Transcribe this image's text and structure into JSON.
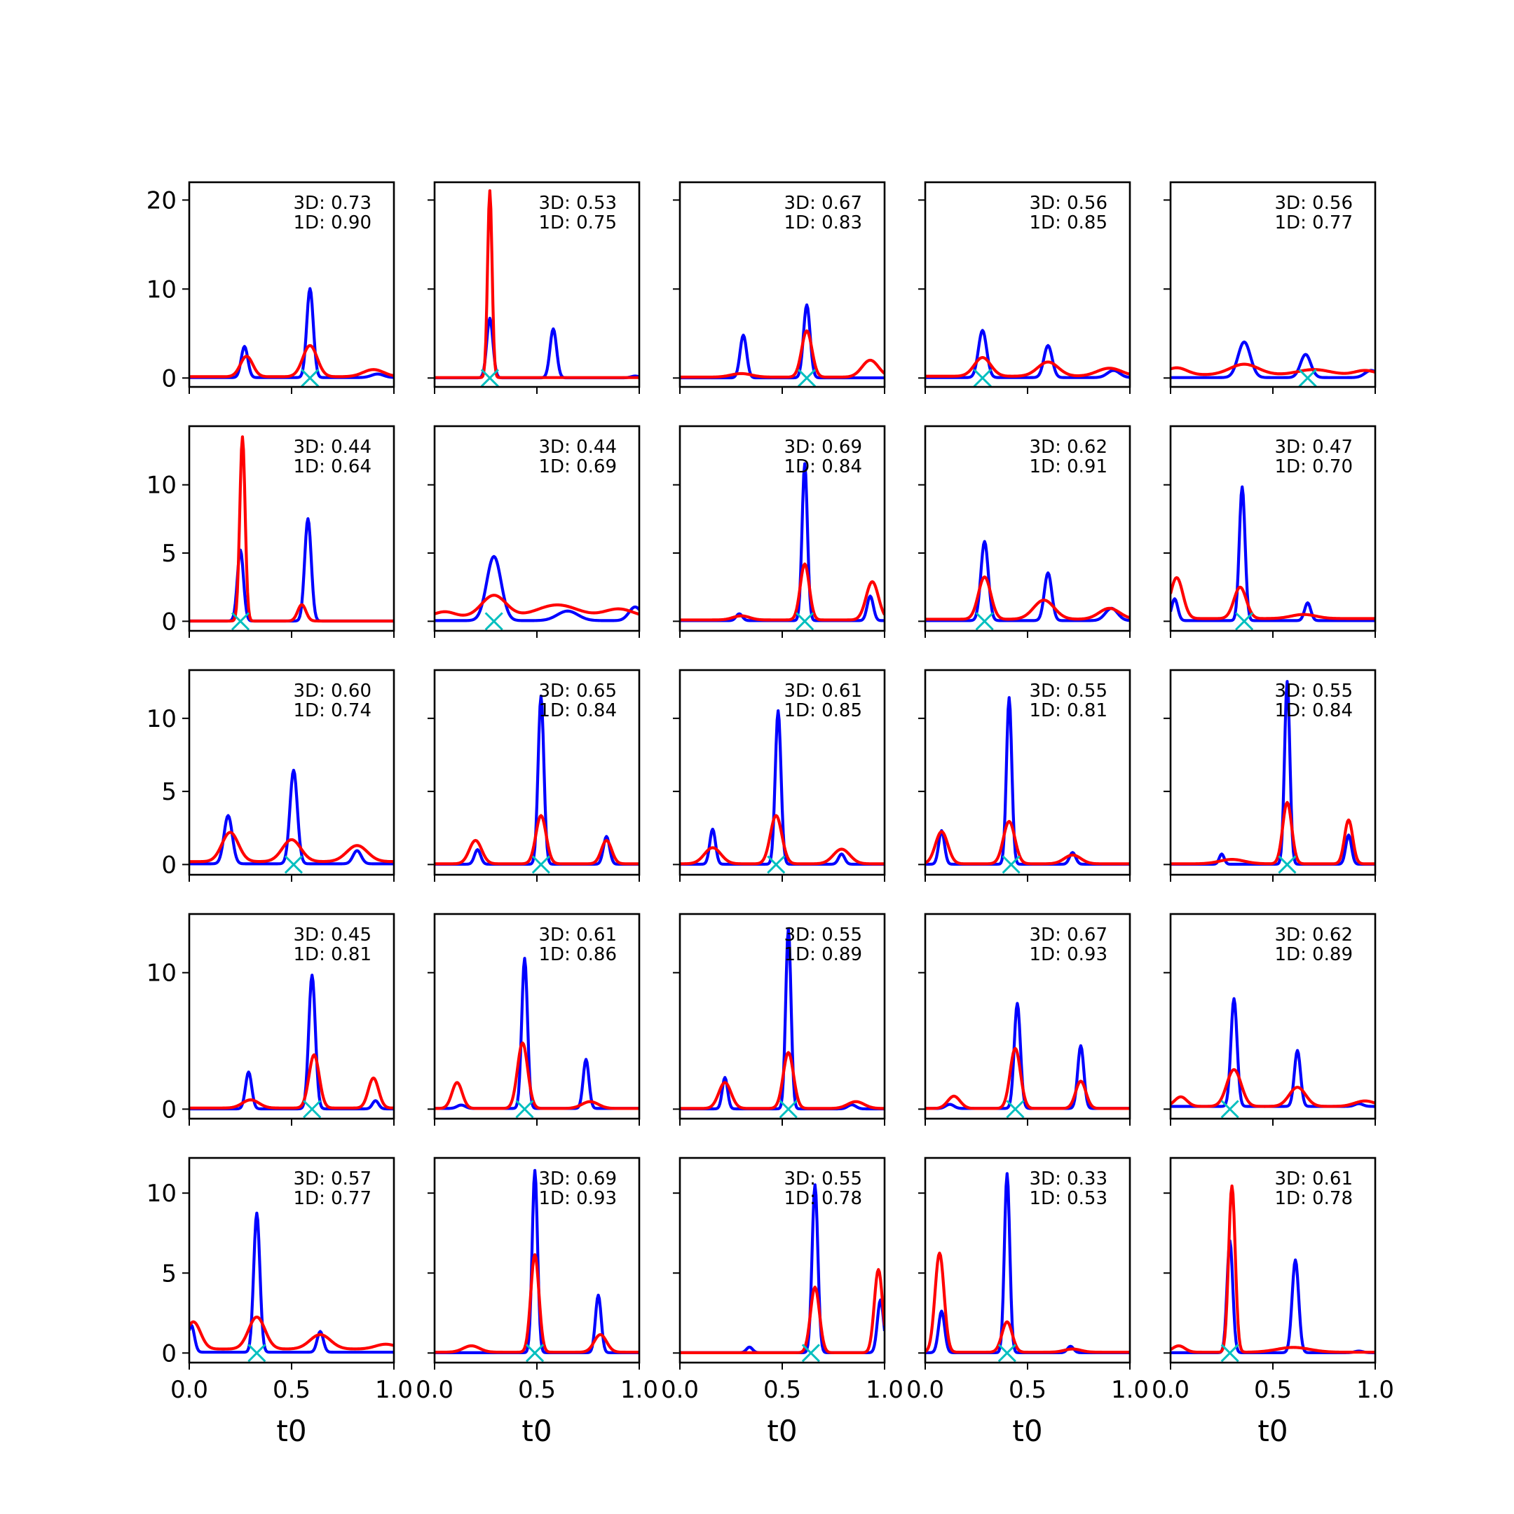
{
  "chart_data": {
    "type": "line",
    "layout": {
      "rows": 5,
      "cols": 5
    },
    "xlabel": "t0",
    "xlim": [
      0.0,
      1.0
    ],
    "xticks": [
      "0.0",
      "0.5",
      "1.0"
    ],
    "series_styles": [
      {
        "role": "3D",
        "color": "#0000ff"
      },
      {
        "role": "1D",
        "color": "#ff0000"
      },
      {
        "role": "marker",
        "color": "#00bfbf",
        "marker": "x"
      }
    ],
    "rows": [
      {
        "ylim": [
          -1,
          22
        ],
        "yticks": [
          0,
          10,
          20
        ]
      },
      {
        "ylim": [
          -0.7,
          14.3
        ],
        "yticks": [
          0,
          5,
          10
        ]
      },
      {
        "ylim": [
          -0.7,
          13.3
        ],
        "yticks": [
          0,
          5,
          10
        ]
      },
      {
        "ylim": [
          -0.7,
          14.3
        ],
        "yticks": [
          0,
          10
        ]
      },
      {
        "ylim": [
          -0.6,
          12.2
        ],
        "yticks": [
          0,
          5,
          10
        ]
      }
    ],
    "panels": [
      {
        "ann": [
          "3D: 0.73",
          "1D: 0.90"
        ],
        "marker": 0.59,
        "blue": [
          [
            0.27,
            3.5,
            0.016
          ],
          [
            0.59,
            10,
            0.016
          ],
          [
            0.92,
            0.4,
            0.03
          ]
        ],
        "red": [
          [
            0.28,
            2.3,
            0.03
          ],
          [
            0.59,
            3.5,
            0.035
          ],
          [
            0.9,
            0.8,
            0.05
          ]
        ],
        "blue_base": 0.05,
        "red_base": 0.15
      },
      {
        "ann": [
          "3D: 0.53",
          "1D: 0.75"
        ],
        "marker": 0.27,
        "blue": [
          [
            0.27,
            6.7,
            0.015
          ],
          [
            0.58,
            5.5,
            0.016
          ],
          [
            0.98,
            0.2,
            0.02
          ]
        ],
        "red": [
          [
            0.27,
            21,
            0.011
          ]
        ],
        "blue_base": 0.02,
        "red_base": 0.05
      },
      {
        "ann": [
          "3D: 0.67",
          "1D: 0.83"
        ],
        "marker": 0.62,
        "blue": [
          [
            0.31,
            4.8,
            0.016
          ],
          [
            0.62,
            8.2,
            0.016
          ]
        ],
        "red": [
          [
            0.3,
            0.4,
            0.05
          ],
          [
            0.62,
            5.2,
            0.025
          ],
          [
            0.93,
            1.9,
            0.04
          ]
        ],
        "blue_base": 0.02,
        "red_base": 0.1
      },
      {
        "ann": [
          "3D: 0.56",
          "1D: 0.85"
        ],
        "marker": 0.28,
        "blue": [
          [
            0.28,
            5.3,
            0.02
          ],
          [
            0.6,
            3.6,
            0.02
          ],
          [
            0.92,
            0.8,
            0.03
          ]
        ],
        "red": [
          [
            0.28,
            2.1,
            0.04
          ],
          [
            0.6,
            1.6,
            0.05
          ],
          [
            0.9,
            0.9,
            0.06
          ]
        ],
        "blue_base": 0.05,
        "red_base": 0.2
      },
      {
        "ann": [
          "3D: 0.56",
          "1D: 0.77"
        ],
        "marker": 0.67,
        "blue": [
          [
            0.36,
            4.0,
            0.03
          ],
          [
            0.66,
            2.6,
            0.025
          ],
          [
            0.98,
            0.8,
            0.03
          ]
        ],
        "red": [
          [
            0.03,
            0.8,
            0.05
          ],
          [
            0.36,
            1.2,
            0.07
          ],
          [
            0.7,
            0.6,
            0.08
          ],
          [
            0.95,
            0.5,
            0.05
          ]
        ],
        "blue_base": 0.05,
        "red_base": 0.35
      },
      {
        "ann": [
          "3D: 0.44",
          "1D: 0.64"
        ],
        "marker": 0.25,
        "blue": [
          [
            0.25,
            5.2,
            0.015
          ],
          [
            0.58,
            7.5,
            0.016
          ]
        ],
        "red": [
          [
            0.26,
            13.5,
            0.013
          ],
          [
            0.55,
            1.2,
            0.02
          ]
        ],
        "blue_base": 0.02,
        "red_base": 0.02
      },
      {
        "ann": [
          "3D: 0.44",
          "1D: 0.69"
        ],
        "marker": 0.29,
        "blue": [
          [
            0.29,
            4.7,
            0.035
          ],
          [
            0.65,
            0.7,
            0.05
          ],
          [
            0.98,
            1.0,
            0.03
          ]
        ],
        "red": [
          [
            0.05,
            0.4,
            0.05
          ],
          [
            0.29,
            1.6,
            0.06
          ],
          [
            0.6,
            0.9,
            0.1
          ],
          [
            0.9,
            0.6,
            0.07
          ]
        ],
        "blue_base": 0.05,
        "red_base": 0.3
      },
      {
        "ann": [
          "3D: 0.69",
          "1D: 0.84"
        ],
        "marker": 0.61,
        "blue": [
          [
            0.29,
            0.5,
            0.015
          ],
          [
            0.61,
            11.5,
            0.013
          ],
          [
            0.93,
            1.8,
            0.015
          ]
        ],
        "red": [
          [
            0.3,
            0.3,
            0.04
          ],
          [
            0.61,
            4.1,
            0.022
          ],
          [
            0.94,
            2.8,
            0.03
          ]
        ],
        "blue_base": 0.05,
        "red_base": 0.1
      },
      {
        "ann": [
          "3D: 0.62",
          "1D: 0.91"
        ],
        "marker": 0.29,
        "blue": [
          [
            0.29,
            5.8,
            0.018
          ],
          [
            0.6,
            3.5,
            0.018
          ],
          [
            0.91,
            0.9,
            0.03
          ]
        ],
        "red": [
          [
            0.29,
            3.1,
            0.03
          ],
          [
            0.58,
            1.4,
            0.05
          ],
          [
            0.9,
            0.8,
            0.05
          ]
        ],
        "blue_base": 0.05,
        "red_base": 0.15
      },
      {
        "ann": [
          "3D: 0.47",
          "1D: 0.70"
        ],
        "marker": 0.36,
        "blue": [
          [
            0.02,
            1.6,
            0.015
          ],
          [
            0.35,
            9.8,
            0.014
          ],
          [
            0.67,
            1.3,
            0.015
          ]
        ],
        "red": [
          [
            0.03,
            3.0,
            0.03
          ],
          [
            0.34,
            2.3,
            0.03
          ],
          [
            0.65,
            0.3,
            0.06
          ]
        ],
        "blue_base": 0.05,
        "red_base": 0.2
      },
      {
        "ann": [
          "3D: 0.60",
          "1D: 0.74"
        ],
        "marker": 0.51,
        "blue": [
          [
            0.19,
            3.3,
            0.02
          ],
          [
            0.51,
            6.4,
            0.018
          ],
          [
            0.82,
            0.9,
            0.02
          ]
        ],
        "red": [
          [
            0.2,
            2.0,
            0.04
          ],
          [
            0.5,
            1.5,
            0.045
          ],
          [
            0.82,
            1.1,
            0.05
          ]
        ],
        "blue_base": 0.05,
        "red_base": 0.2
      },
      {
        "ann": [
          "3D: 0.65",
          "1D: 0.84"
        ],
        "marker": 0.52,
        "blue": [
          [
            0.21,
            1.0,
            0.015
          ],
          [
            0.52,
            11.5,
            0.014
          ],
          [
            0.84,
            1.9,
            0.015
          ]
        ],
        "red": [
          [
            0.2,
            1.6,
            0.03
          ],
          [
            0.52,
            3.3,
            0.025
          ],
          [
            0.84,
            1.6,
            0.025
          ]
        ],
        "blue_base": 0.02,
        "red_base": 0.05
      },
      {
        "ann": [
          "3D: 0.61",
          "1D: 0.85"
        ],
        "marker": 0.47,
        "blue": [
          [
            0.16,
            2.4,
            0.014
          ],
          [
            0.48,
            10.5,
            0.014
          ],
          [
            0.79,
            0.7,
            0.015
          ]
        ],
        "red": [
          [
            0.16,
            1.1,
            0.04
          ],
          [
            0.47,
            3.3,
            0.028
          ],
          [
            0.79,
            1.0,
            0.04
          ]
        ],
        "blue_base": 0.02,
        "red_base": 0.05
      },
      {
        "ann": [
          "3D: 0.55",
          "1D: 0.81"
        ],
        "marker": 0.42,
        "blue": [
          [
            0.08,
            2.3,
            0.014
          ],
          [
            0.41,
            11.4,
            0.013
          ],
          [
            0.72,
            0.8,
            0.015
          ]
        ],
        "red": [
          [
            0.08,
            2.2,
            0.03
          ],
          [
            0.41,
            2.9,
            0.028
          ],
          [
            0.72,
            0.6,
            0.04
          ]
        ],
        "blue_base": 0.02,
        "red_base": 0.05
      },
      {
        "ann": [
          "3D: 0.55",
          "1D: 0.84"
        ],
        "marker": 0.57,
        "blue": [
          [
            0.25,
            0.7,
            0.012
          ],
          [
            0.57,
            12.5,
            0.013
          ],
          [
            0.87,
            2.0,
            0.014
          ]
        ],
        "red": [
          [
            0.3,
            0.3,
            0.06
          ],
          [
            0.57,
            4.2,
            0.022
          ],
          [
            0.87,
            3.0,
            0.02
          ]
        ],
        "blue_base": 0.02,
        "red_base": 0.05
      },
      {
        "ann": [
          "3D: 0.45",
          "1D: 0.81"
        ],
        "marker": 0.6,
        "blue": [
          [
            0.29,
            2.7,
            0.015
          ],
          [
            0.6,
            9.8,
            0.016
          ],
          [
            0.91,
            0.6,
            0.015
          ]
        ],
        "red": [
          [
            0.3,
            0.6,
            0.04
          ],
          [
            0.61,
            3.9,
            0.025
          ],
          [
            0.9,
            2.2,
            0.025
          ]
        ],
        "blue_base": 0.02,
        "red_base": 0.08
      },
      {
        "ann": [
          "3D: 0.61",
          "1D: 0.86"
        ],
        "marker": 0.44,
        "blue": [
          [
            0.13,
            0.25,
            0.02
          ],
          [
            0.44,
            11.0,
            0.014
          ],
          [
            0.74,
            3.6,
            0.014
          ]
        ],
        "red": [
          [
            0.11,
            1.9,
            0.025
          ],
          [
            0.43,
            4.8,
            0.025
          ],
          [
            0.76,
            0.5,
            0.04
          ]
        ],
        "blue_base": 0.05,
        "red_base": 0.05
      },
      {
        "ann": [
          "3D: 0.55",
          "1D: 0.89"
        ],
        "marker": 0.53,
        "blue": [
          [
            0.22,
            2.3,
            0.013
          ],
          [
            0.53,
            13.2,
            0.013
          ],
          [
            0.84,
            0.3,
            0.02
          ]
        ],
        "red": [
          [
            0.22,
            1.9,
            0.03
          ],
          [
            0.53,
            4.1,
            0.025
          ],
          [
            0.86,
            0.5,
            0.04
          ]
        ],
        "blue_base": 0.02,
        "red_base": 0.05
      },
      {
        "ann": [
          "3D: 0.67",
          "1D: 0.93"
        ],
        "marker": 0.44,
        "blue": [
          [
            0.12,
            0.3,
            0.02
          ],
          [
            0.45,
            7.7,
            0.015
          ],
          [
            0.76,
            4.6,
            0.015
          ]
        ],
        "red": [
          [
            0.14,
            0.9,
            0.03
          ],
          [
            0.44,
            4.4,
            0.025
          ],
          [
            0.76,
            2.0,
            0.025
          ]
        ],
        "blue_base": 0.05,
        "red_base": 0.05
      },
      {
        "ann": [
          "3D: 0.62",
          "1D: 0.89"
        ],
        "marker": 0.29,
        "blue": [
          [
            0.31,
            7.9,
            0.015
          ],
          [
            0.62,
            4.1,
            0.015
          ],
          [
            0.92,
            0.2,
            0.02
          ]
        ],
        "red": [
          [
            0.05,
            0.7,
            0.03
          ],
          [
            0.31,
            2.7,
            0.035
          ],
          [
            0.62,
            1.4,
            0.04
          ],
          [
            0.95,
            0.4,
            0.05
          ]
        ],
        "blue_base": 0.2,
        "red_base": 0.2
      },
      {
        "ann": [
          "3D: 0.57",
          "1D: 0.77"
        ],
        "marker": 0.33,
        "blue": [
          [
            0.01,
            1.7,
            0.015
          ],
          [
            0.33,
            8.7,
            0.015
          ],
          [
            0.64,
            1.3,
            0.015
          ]
        ],
        "red": [
          [
            0.02,
            1.7,
            0.035
          ],
          [
            0.33,
            2.0,
            0.04
          ],
          [
            0.64,
            0.9,
            0.05
          ],
          [
            0.96,
            0.3,
            0.05
          ]
        ],
        "blue_base": 0.05,
        "red_base": 0.25
      },
      {
        "ann": [
          "3D: 0.69",
          "1D: 0.93"
        ],
        "marker": 0.49,
        "blue": [
          [
            0.49,
            11.4,
            0.013
          ],
          [
            0.8,
            3.6,
            0.014
          ]
        ],
        "red": [
          [
            0.18,
            0.4,
            0.04
          ],
          [
            0.49,
            6.1,
            0.02
          ],
          [
            0.81,
            1.1,
            0.03
          ]
        ],
        "blue_base": 0.02,
        "red_base": 0.05
      },
      {
        "ann": [
          "3D: 0.55",
          "1D: 0.78"
        ],
        "marker": 0.64,
        "blue": [
          [
            0.34,
            0.35,
            0.015
          ],
          [
            0.66,
            10.5,
            0.014
          ],
          [
            0.98,
            3.3,
            0.015
          ]
        ],
        "red": [
          [
            0.66,
            4.1,
            0.022
          ],
          [
            0.97,
            5.2,
            0.02
          ]
        ],
        "blue_base": 0.02,
        "red_base": 0.02
      },
      {
        "ann": [
          "3D: 0.33",
          "1D: 0.53"
        ],
        "marker": 0.4,
        "blue": [
          [
            0.08,
            2.6,
            0.015
          ],
          [
            0.4,
            11.2,
            0.013
          ],
          [
            0.71,
            0.4,
            0.015
          ]
        ],
        "red": [
          [
            0.07,
            6.2,
            0.022
          ],
          [
            0.4,
            1.9,
            0.025
          ],
          [
            0.72,
            0.2,
            0.04
          ]
        ],
        "blue_base": 0.02,
        "red_base": 0.05
      },
      {
        "ann": [
          "3D: 0.61",
          "1D: 0.78"
        ],
        "marker": 0.29,
        "blue": [
          [
            0.29,
            7.0,
            0.014
          ],
          [
            0.61,
            5.8,
            0.016
          ],
          [
            0.92,
            0.1,
            0.02
          ]
        ],
        "red": [
          [
            0.3,
            10.4,
            0.016
          ],
          [
            0.6,
            0.3,
            0.08
          ],
          [
            0.04,
            0.4,
            0.03
          ]
        ],
        "blue_base": 0.02,
        "red_base": 0.05
      }
    ]
  }
}
